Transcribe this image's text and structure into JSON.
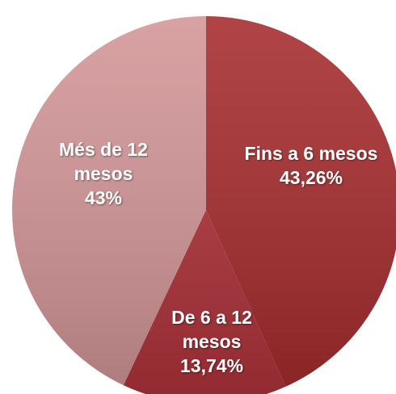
{
  "chart_data": {
    "type": "pie",
    "categories": [
      "Fins a 6 mesos",
      "De 6 a 12 mesos",
      "Més de 12 mesos"
    ],
    "values": [
      43.26,
      13.74,
      43
    ],
    "value_labels": [
      "43,26%",
      "13,74%",
      "43%"
    ],
    "colors": [
      "#a52a2c",
      "#b0323a",
      "#d39597"
    ]
  }
}
